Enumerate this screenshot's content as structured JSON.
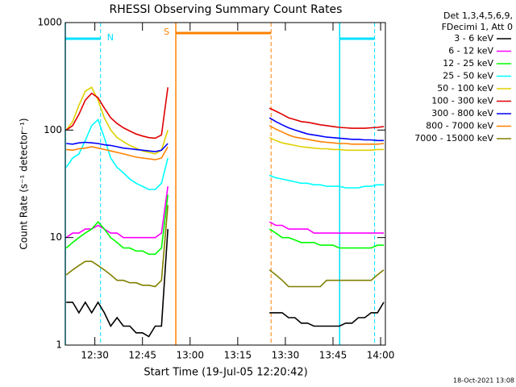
{
  "chart_data": {
    "type": "line",
    "title": "RHESSI Observing Summary Count Rates",
    "xlabel": "Start Time (19-Jul-05 12:20:42)",
    "ylabel": "Count Rate (s⁻¹ detector⁻¹)",
    "legend_header": [
      "Det 1,3,4,5,6,9,",
      "FDecimi 1, Att 0"
    ],
    "footer": "18-Oct-2021 13:08",
    "log_y": true,
    "legend": "right",
    "xlim": [
      20.7,
      121.5
    ],
    "ylim": [
      1,
      1000
    ],
    "xticks": [
      {
        "value": 30,
        "label": "12:30"
      },
      {
        "value": 45,
        "label": "12:45"
      },
      {
        "value": 60,
        "label": "13:00"
      },
      {
        "value": 75,
        "label": "13:15"
      },
      {
        "value": 90,
        "label": "13:30"
      },
      {
        "value": 105,
        "label": "13:45"
      },
      {
        "value": 120,
        "label": "14:00"
      }
    ],
    "yticks": [
      1,
      10,
      100,
      1000
    ],
    "markers": [
      {
        "x": 20.7,
        "color": "#00e0ff",
        "dashed": false
      },
      {
        "x": 31.8,
        "color": "#00e0ff",
        "dashed": true
      },
      {
        "x": 55.5,
        "color": "#ff8000",
        "dashed": false
      },
      {
        "x": 85.5,
        "color": "#ff8000",
        "dashed": true
      },
      {
        "x": 107.1,
        "color": "#00e0ff",
        "dashed": false
      },
      {
        "x": 118.1,
        "color": "#00e0ff",
        "dashed": true
      }
    ],
    "bars": [
      {
        "from": 20.7,
        "to": 31.8,
        "color": "#00e0ff",
        "label": "N"
      },
      {
        "from": 55.5,
        "to": 85.5,
        "color": "#ff8000",
        "label": "S"
      },
      {
        "from": 107.1,
        "to": 118.1,
        "color": "#00e0ff"
      }
    ],
    "x": [
      21,
      23,
      25,
      27,
      29,
      31,
      33,
      35,
      37,
      39,
      41,
      43,
      45,
      47,
      49,
      51,
      53,
      69,
      85,
      87,
      89,
      91,
      93,
      95,
      97,
      99,
      101,
      103,
      105,
      107,
      109,
      111,
      113,
      115,
      117,
      119,
      121
    ],
    "series": [
      {
        "name": "3 - 6 keV",
        "color": "#000000",
        "values": [
          2.5,
          2.5,
          2,
          2.5,
          2,
          2.5,
          2,
          1.5,
          1.8,
          1.5,
          1.5,
          1.3,
          1.3,
          1.2,
          1.5,
          1.5,
          12,
          null,
          2,
          2,
          2,
          1.8,
          1.8,
          1.6,
          1.6,
          1.5,
          1.5,
          1.5,
          1.5,
          1.5,
          1.6,
          1.6,
          1.8,
          1.8,
          2,
          2,
          2.5
        ]
      },
      {
        "name": "6 - 12 keV",
        "color": "#ff00ff",
        "values": [
          10,
          11,
          11,
          12,
          12,
          13,
          12,
          11,
          11,
          10,
          10,
          10,
          10,
          10,
          10,
          11,
          30,
          null,
          14,
          13,
          13,
          12,
          12,
          12,
          12,
          11,
          11,
          11,
          11,
          11,
          11,
          11,
          11,
          11,
          11,
          11,
          11
        ]
      },
      {
        "name": "12 - 25 keV",
        "color": "#00ff00",
        "values": [
          8,
          9,
          10,
          11,
          12,
          14,
          12,
          10,
          9,
          8,
          8,
          7.5,
          7.5,
          7,
          7,
          8,
          25,
          null,
          12,
          11,
          10,
          10,
          9.5,
          9,
          9,
          9,
          8.5,
          8.5,
          8.5,
          8,
          8,
          8,
          8,
          8,
          8,
          8.5,
          8.5
        ]
      },
      {
        "name": "25 - 50 keV",
        "color": "#00ffff",
        "values": [
          45,
          55,
          60,
          80,
          110,
          125,
          85,
          55,
          45,
          40,
          35,
          32,
          30,
          28,
          28,
          32,
          55,
          null,
          38,
          36,
          35,
          34,
          33,
          32,
          32,
          31,
          31,
          30,
          30,
          30,
          29,
          29,
          29,
          30,
          30,
          31,
          31
        ]
      },
      {
        "name": "50 - 100 keV",
        "color": "#e0d000",
        "values": [
          100,
          120,
          170,
          230,
          250,
          190,
          130,
          100,
          85,
          78,
          72,
          68,
          64,
          62,
          60,
          65,
          100,
          null,
          85,
          80,
          76,
          74,
          72,
          70,
          69,
          68,
          67,
          67,
          66,
          66,
          65,
          65,
          65,
          65,
          65,
          66,
          66
        ]
      },
      {
        "name": "100 - 300 keV",
        "color": "#e00000",
        "values": [
          100,
          110,
          140,
          190,
          220,
          200,
          160,
          130,
          115,
          105,
          98,
          92,
          88,
          85,
          84,
          90,
          250,
          null,
          160,
          150,
          140,
          130,
          125,
          120,
          118,
          115,
          112,
          110,
          108,
          106,
          105,
          104,
          104,
          104,
          105,
          106,
          108
        ]
      },
      {
        "name": "300 - 800 keV",
        "color": "#0000ff",
        "values": [
          75,
          74,
          76,
          77,
          76,
          75,
          73,
          72,
          70,
          68,
          67,
          66,
          65,
          64,
          63,
          65,
          75,
          null,
          130,
          120,
          112,
          105,
          100,
          96,
          92,
          90,
          88,
          86,
          85,
          84,
          83,
          82,
          82,
          81,
          81,
          80,
          80
        ]
      },
      {
        "name": "800 - 7000 keV",
        "color": "#ff8000",
        "values": [
          66,
          65,
          67,
          68,
          70,
          68,
          66,
          64,
          62,
          60,
          58,
          56,
          55,
          54,
          53,
          55,
          70,
          null,
          110,
          102,
          96,
          90,
          86,
          84,
          82,
          80,
          78,
          77,
          76,
          75,
          75,
          74,
          74,
          74,
          74,
          74,
          75
        ]
      },
      {
        "name": "7000 - 15000 keV",
        "color": "#808000",
        "values": [
          4.5,
          5,
          5.5,
          6,
          6,
          5.5,
          5,
          4.5,
          4,
          4,
          3.8,
          3.8,
          3.6,
          3.6,
          3.5,
          4,
          20,
          null,
          5,
          4.5,
          4,
          3.5,
          3.5,
          3.5,
          3.5,
          3.5,
          3.5,
          4,
          4,
          4,
          4,
          4,
          4,
          4,
          4,
          4.5,
          5
        ]
      }
    ]
  }
}
